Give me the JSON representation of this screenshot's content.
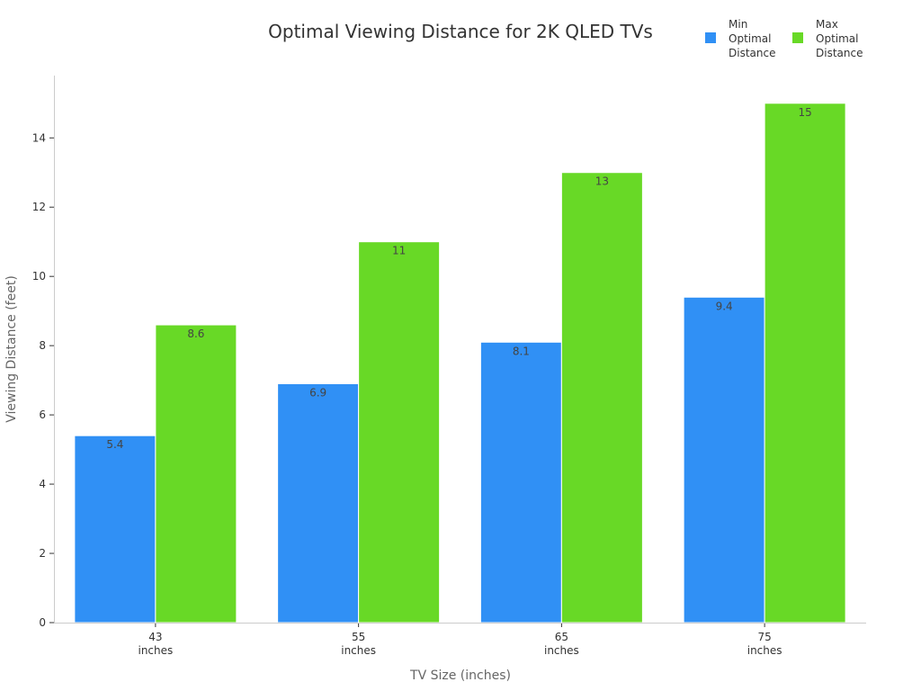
{
  "chart_data": {
    "type": "bar",
    "title": "Optimal Viewing Distance for 2K QLED TVs",
    "xlabel": "TV Size (inches)",
    "ylabel": "Viewing Distance (feet)",
    "categories": [
      [
        "43",
        "inches"
      ],
      [
        "55",
        "inches"
      ],
      [
        "65",
        "inches"
      ],
      [
        "75",
        "inches"
      ]
    ],
    "series": [
      {
        "name": [
          "Min",
          "Optimal",
          "Distance"
        ],
        "values": [
          5.4,
          6.9,
          8.1,
          9.4
        ],
        "labels": [
          "5.4",
          "6.9",
          "8.1",
          "9.4"
        ],
        "color": "#3090F5"
      },
      {
        "name": [
          "Max",
          "Optimal",
          "Distance"
        ],
        "values": [
          8.6,
          11,
          13,
          15
        ],
        "labels": [
          "8.6",
          "11",
          "13",
          "15"
        ],
        "color": "#68D926"
      }
    ],
    "ylim": [
      0,
      15.8
    ],
    "yticks": [
      0,
      2,
      4,
      6,
      8,
      10,
      12,
      14
    ],
    "grid": false,
    "legend": "top-right"
  }
}
